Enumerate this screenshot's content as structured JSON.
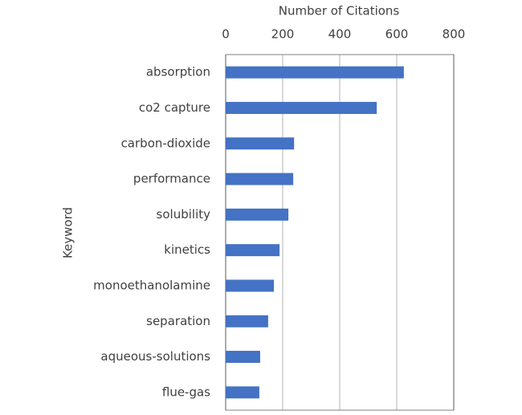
{
  "chart_data": {
    "type": "bar",
    "orientation": "horizontal",
    "x_label": "Number of Citations",
    "y_label": "Keyword",
    "categories": [
      "absorption",
      "co2 capture",
      "carbon-dioxide",
      "performance",
      "solubility",
      "kinetics",
      "monoethanolamine",
      "separation",
      "aqueous-solutions",
      "flue-gas"
    ],
    "values": [
      625,
      530,
      240,
      237,
      220,
      189,
      169,
      149,
      121,
      118
    ],
    "color": "#4472c4",
    "xlim": [
      0,
      800
    ],
    "xticks": [
      0,
      200,
      400,
      600,
      800
    ],
    "grid": true
  }
}
